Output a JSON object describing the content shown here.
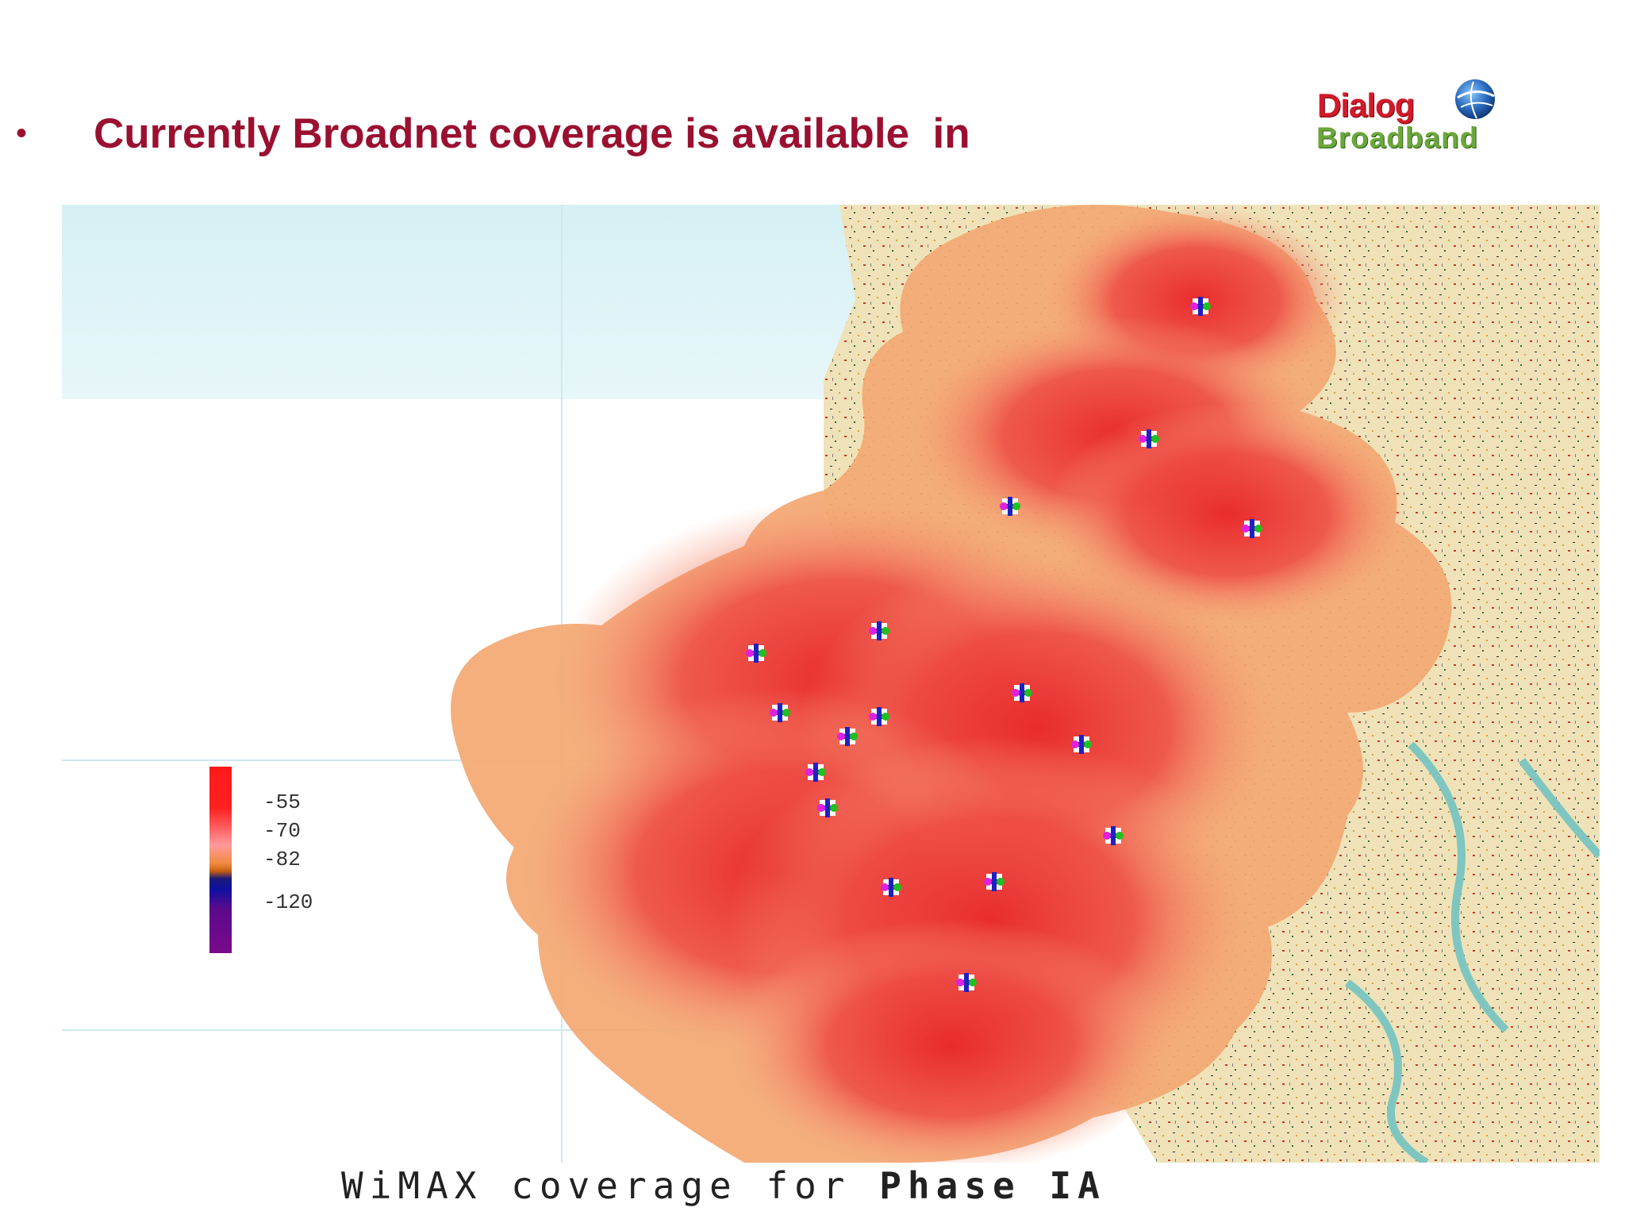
{
  "slide": {
    "bullet_symbol": "•",
    "heading": "Currently Broadnet coverage is available  in"
  },
  "logo": {
    "line1": "Dialog",
    "line2": "Broadband",
    "brand_red": "#d11a2a",
    "brand_green": "#6aa83a",
    "globe_icon": "globe-icon"
  },
  "map": {
    "sea_color": "#dff3f6",
    "coverage_strong_color": "#f03a3a",
    "coverage_weak_color": "#f2a06a",
    "site_icon": "base-station-icon"
  },
  "legend": {
    "labels": [
      "-55",
      "-70",
      "-82",
      "-120"
    ],
    "units": ""
  },
  "caption": {
    "part1": "WiMAX coverage for ",
    "part2": "Phase IA"
  }
}
